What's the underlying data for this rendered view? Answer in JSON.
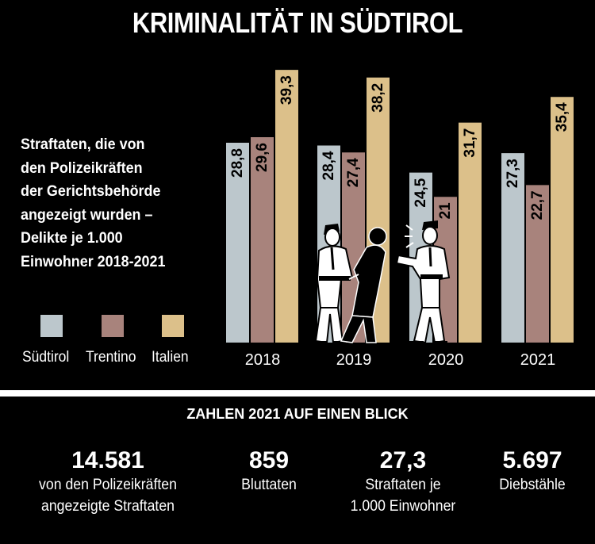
{
  "title": "KRIMINALITÄT IN SÜDTIROL",
  "subtitle_lines": [
    "Straftaten, die von",
    "den Polizeikräften",
    "der Gerichtsbehörde",
    "angezeigt wurden –",
    "Delikte je 1.000",
    "Einwohner 2018-2021"
  ],
  "colors": {
    "background": "#000000",
    "Südtirol": "#bcc7cc",
    "Trentino": "#a8837c",
    "Italien": "#dcc08a"
  },
  "chart_data": {
    "type": "bar",
    "categories": [
      "2018",
      "2019",
      "2020",
      "2021"
    ],
    "series": [
      {
        "name": "Südtirol",
        "values": [
          28.8,
          28.4,
          24.5,
          27.3
        ],
        "labels": [
          "28,8",
          "28,4",
          "24,5",
          "27,3"
        ]
      },
      {
        "name": "Trentino",
        "values": [
          29.6,
          27.4,
          21,
          22.7
        ],
        "labels": [
          "29,6",
          "27,4",
          "21",
          "22,7"
        ]
      },
      {
        "name": "Italien",
        "values": [
          39.3,
          38.2,
          31.7,
          35.4
        ],
        "labels": [
          "39,3",
          "38,2",
          "31,7",
          "35,4"
        ]
      }
    ],
    "legend": "bottom-left",
    "grid": false
  },
  "illustration": "police-officers-arresting-person",
  "summary": {
    "heading": "ZAHLEN 2021 AUF EINEN BLICK",
    "items": [
      {
        "value": "14.581",
        "label_lines": [
          "von den Polizeikräften",
          "angezeigte Straftaten"
        ]
      },
      {
        "value": "859",
        "label_lines": [
          "Bluttaten"
        ]
      },
      {
        "value": "27,3",
        "label_lines": [
          "Straftaten je",
          "1.000 Einwohner"
        ]
      },
      {
        "value": "5.697",
        "label_lines": [
          "Diebstähle"
        ]
      }
    ]
  }
}
